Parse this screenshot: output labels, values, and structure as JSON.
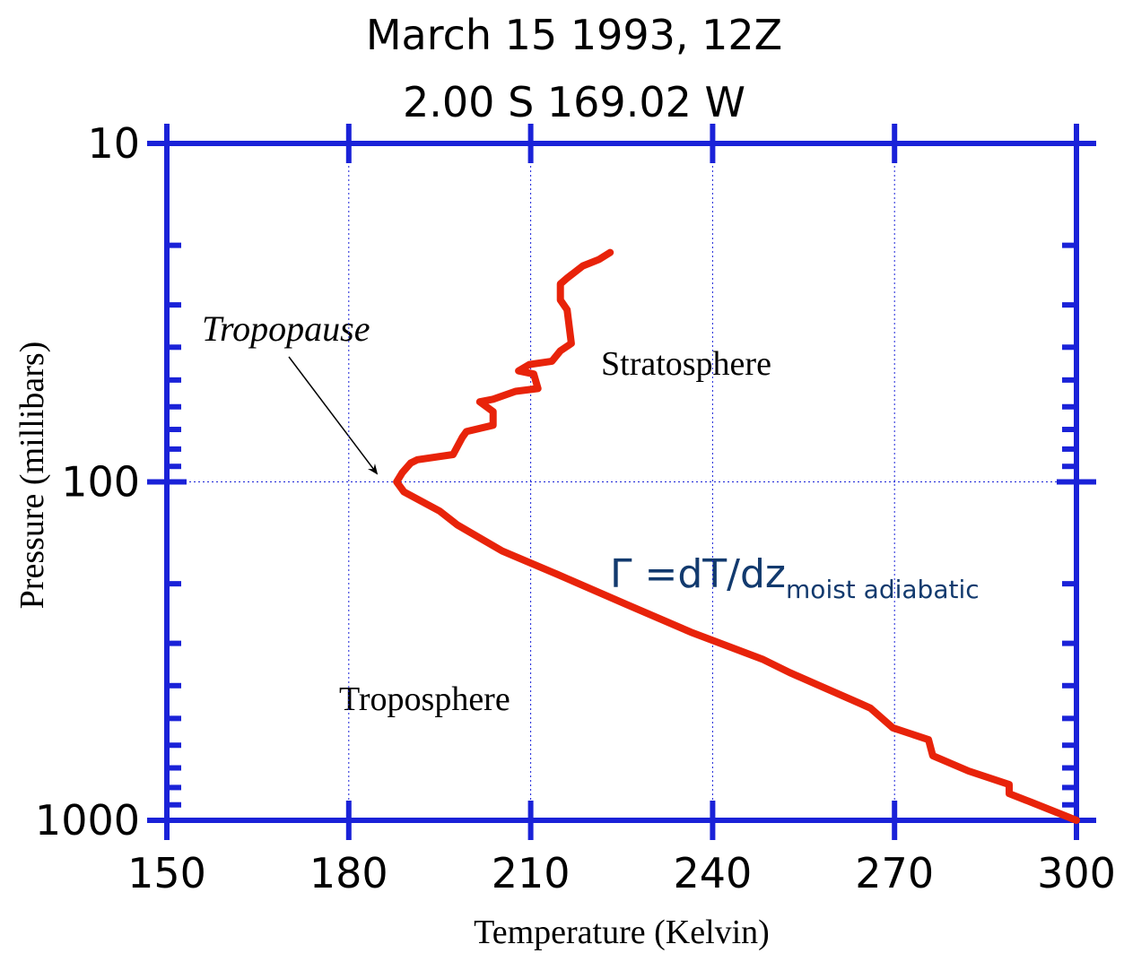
{
  "chart_data": {
    "type": "line",
    "title": "March 15 1993, 12Z",
    "subtitle": "2.00 S 169.02 W",
    "x_label": "Temperature (Kelvin)",
    "y_label": "Pressure (millibars)",
    "x": [
      300,
      292.6,
      288.9,
      288.9,
      282.2,
      276.3,
      275.6,
      269.7,
      266.0,
      264.5,
      252.7,
      248.2,
      236.4,
      226.0,
      214.2,
      205.3,
      197.9,
      195.0,
      189.1,
      187.9,
      188.8,
      190.2,
      191.3,
      197.2,
      198.7,
      199.4,
      203.8,
      203.8,
      201.6,
      203.8,
      207.5,
      211.2,
      210.5,
      208.0,
      209.8,
      213.5,
      214.9,
      216.7,
      216.0,
      214.9,
      214.9,
      216.0,
      218.6,
      221.3,
      223.1
    ],
    "values": [
      1000,
      885,
      834,
      784,
      715,
      644,
      578,
      533,
      466,
      453,
      366,
      334,
      278,
      231,
      187,
      160,
      134,
      122,
      107,
      100,
      94,
      88,
      86,
      83,
      74,
      71,
      68,
      62,
      58,
      57,
      54,
      53,
      48,
      47,
      45,
      44,
      41,
      39,
      31,
      29,
      26,
      25,
      23,
      22,
      21
    ],
    "color": "#e8230a",
    "xlim": [
      150,
      300
    ],
    "xticks": [
      150,
      180,
      210,
      240,
      270,
      300
    ],
    "ylim": [
      1000,
      10
    ],
    "yticks": [
      10,
      100,
      1000
    ],
    "yminorticks": [
      20,
      30,
      40,
      50,
      60,
      70,
      80,
      90,
      200,
      300,
      400,
      500,
      600,
      700,
      800,
      900
    ],
    "ylog": true,
    "grid": true,
    "annotations": [
      {
        "text": "Tropopause"
      },
      {
        "text": "Stratosphere"
      },
      {
        "text": "Troposphere"
      }
    ],
    "formula": {
      "text": "Γ =dT/dz",
      "subscript": "moist adiabatic"
    }
  }
}
